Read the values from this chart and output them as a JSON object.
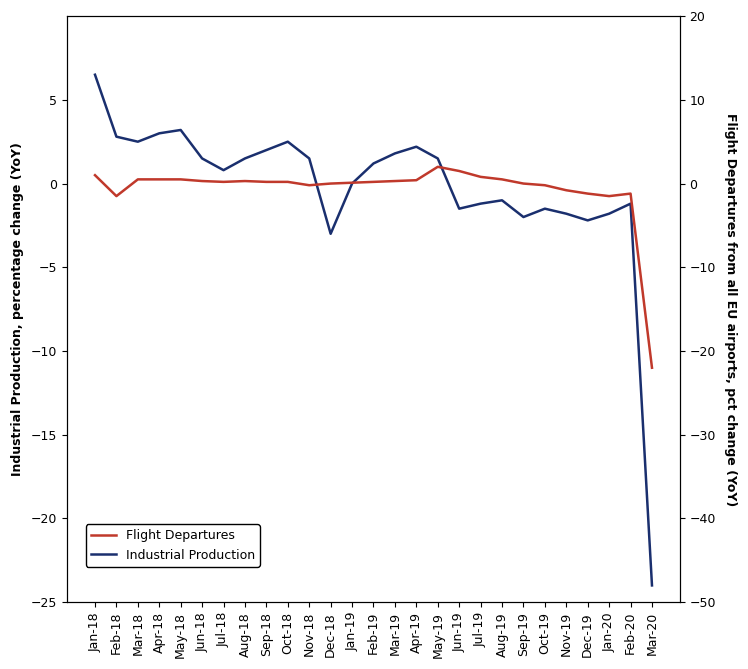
{
  "labels": [
    "Jan-18",
    "Feb-18",
    "Mar-18",
    "Apr-18",
    "May-18",
    "Jun-18",
    "Jul-18",
    "Aug-18",
    "Sep-18",
    "Oct-18",
    "Nov-18",
    "Dec-18",
    "Jan-19",
    "Feb-19",
    "Mar-19",
    "Apr-19",
    "May-19",
    "Jun-19",
    "Jul-19",
    "Aug-19",
    "Sep-19",
    "Oct-19",
    "Nov-19",
    "Dec-19",
    "Jan-20",
    "Feb-20",
    "Mar-20"
  ],
  "industrial_production": [
    6.5,
    2.8,
    2.5,
    3.0,
    3.2,
    1.5,
    0.8,
    1.5,
    2.0,
    2.5,
    1.5,
    -3.0,
    0.0,
    1.2,
    1.8,
    2.2,
    1.5,
    -1.5,
    -1.2,
    -1.0,
    -2.0,
    -1.5,
    -1.8,
    -2.2,
    -1.8,
    -1.2,
    -24.0
  ],
  "flight_departures": [
    1.0,
    -1.5,
    0.5,
    0.5,
    0.5,
    0.3,
    0.2,
    0.3,
    0.2,
    0.2,
    -0.2,
    0.0,
    0.1,
    0.2,
    0.3,
    0.4,
    2.0,
    1.5,
    0.8,
    0.5,
    0.0,
    -0.2,
    -0.8,
    -1.2,
    -1.5,
    -1.2,
    -22.0
  ],
  "ip_color": "#1a2f6e",
  "fd_color": "#c0392b",
  "left_ylim": [
    -25,
    10
  ],
  "right_ylim": [
    -50,
    20
  ],
  "left_yticks": [
    -25,
    -20,
    -15,
    -10,
    -5,
    0,
    5
  ],
  "right_yticks": [
    -50,
    -40,
    -30,
    -20,
    -10,
    0,
    10,
    20
  ],
  "left_ylabel": "Industrial Production, percentage change (YoY)",
  "right_ylabel": "Flight Departures from all EU airports, pct change (YoY)",
  "legend_flight": "Flight Departures",
  "legend_ip": "Industrial Production",
  "background_color": "#ffffff",
  "linewidth": 1.8,
  "label_fontsize": 9,
  "tick_fontsize": 9,
  "legend_fontsize": 9
}
